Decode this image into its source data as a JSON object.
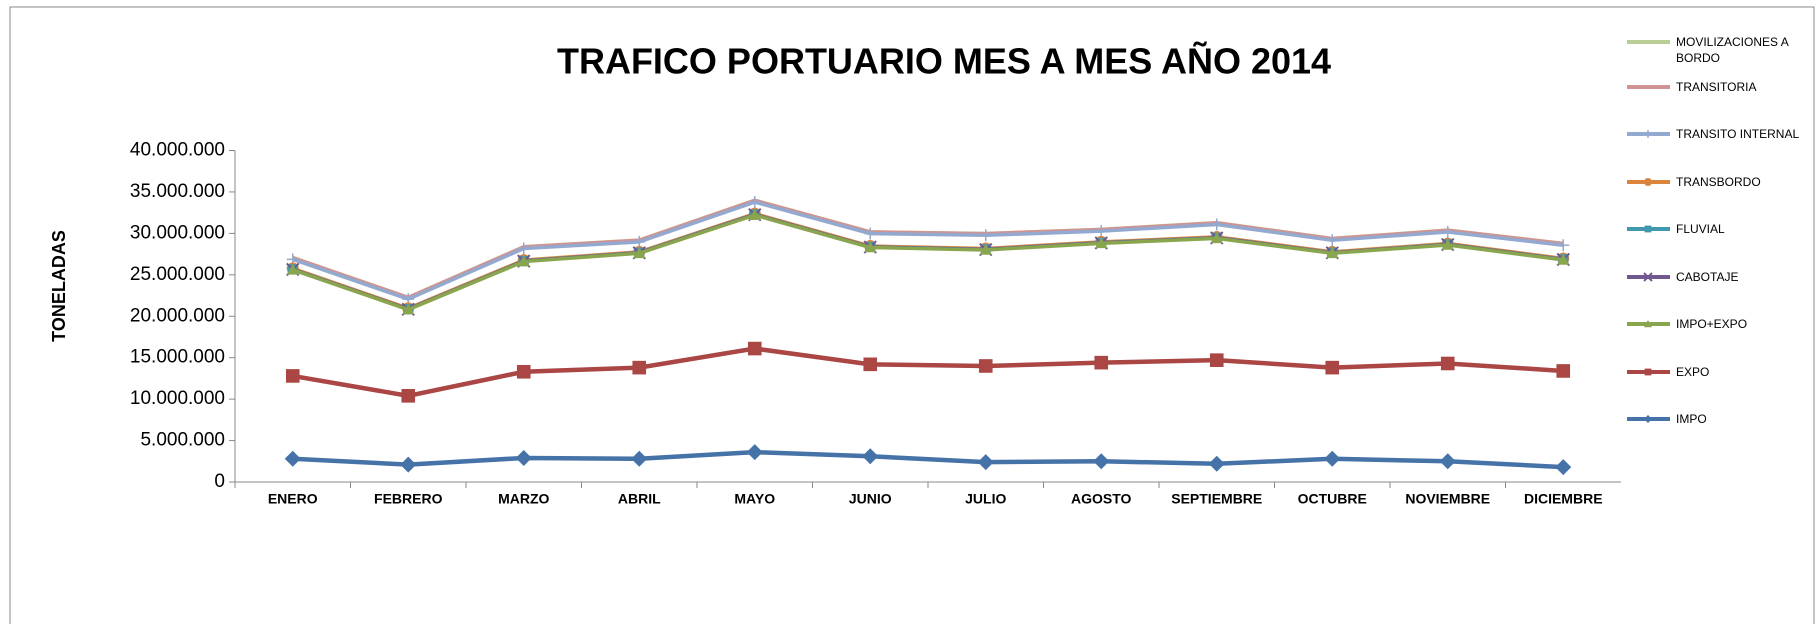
{
  "chart_data": {
    "type": "line",
    "stacked": true,
    "title": "TRAFICO PORTUARIO MES A MES AÑO 2014",
    "y_label": "TONELADAS",
    "grid": false,
    "legend": "right",
    "categories": [
      "ENERO",
      "FEBRERO",
      "MARZO",
      "ABRIL",
      "MAYO",
      "JUNIO",
      "JULIO",
      "AGOSTO",
      "SEPTIEMBRE",
      "OCTUBRE",
      "NOVIEMBRE",
      "DICIEMBRE"
    ],
    "ylim": [
      0,
      40000000
    ],
    "yticks": [
      0,
      {
        "value": 5000000,
        "label": "5.000.000"
      },
      {
        "value": 10000000,
        "label": "10.000.000"
      },
      {
        "value": 15000000,
        "label": "15.000.000"
      },
      {
        "value": 20000000,
        "label": "20.000.000"
      },
      {
        "value": 25000000,
        "label": "25.000.000"
      },
      {
        "value": 30000000,
        "label": "30.000.000"
      },
      {
        "value": 35000000,
        "label": "35.000.000"
      },
      {
        "value": 40000000,
        "label": "40.000.000"
      }
    ],
    "series": [
      {
        "name": "IMPO",
        "color": "#4572a7",
        "marker": "diamond",
        "values": [
          2800000,
          2100000,
          2900000,
          2800000,
          3600000,
          3100000,
          2400000,
          2500000,
          2200000,
          2800000,
          2500000,
          1800000
        ]
      },
      {
        "name": "EXPO",
        "color": "#aa4643",
        "marker": "square",
        "values": [
          10000000,
          8300000,
          10400000,
          11000000,
          12500000,
          11100000,
          11600000,
          11900000,
          12500000,
          11000000,
          11800000,
          11600000
        ]
      },
      {
        "name": "IMPO+EXPO",
        "color": "#89a54e",
        "marker": "triangle",
        "values": [
          12800000,
          10400000,
          13300000,
          13800000,
          16100000,
          14100000,
          14000000,
          14400000,
          14700000,
          13800000,
          14300000,
          13400000
        ]
      },
      {
        "name": "CABOTAJE",
        "color": "#71588f",
        "marker": "x",
        "values": [
          50000,
          40000,
          50000,
          50000,
          60000,
          50000,
          50000,
          50000,
          50000,
          50000,
          50000,
          50000
        ]
      },
      {
        "name": "FLUVIAL",
        "color": "#4198af",
        "marker": "square",
        "values": [
          20000,
          20000,
          20000,
          20000,
          20000,
          20000,
          20000,
          20000,
          20000,
          20000,
          20000,
          20000
        ]
      },
      {
        "name": "TRANSBORDO",
        "color": "#db843d",
        "marker": "circle",
        "values": [
          100000,
          100000,
          100000,
          100000,
          100000,
          100000,
          100000,
          100000,
          100000,
          100000,
          100000,
          100000
        ]
      },
      {
        "name": "TRANSITO INTERNAL",
        "color": "#93a9cf",
        "marker": "plus",
        "values": [
          1100000,
          1100000,
          1400000,
          1200000,
          1400000,
          1500000,
          1600000,
          1300000,
          1500000,
          1400000,
          1400000,
          1600000
        ]
      },
      {
        "name": "TRANSITORIA",
        "color": "#d19392",
        "marker": "none",
        "values": [
          200000,
          200000,
          200000,
          200000,
          200000,
          200000,
          200000,
          200000,
          200000,
          200000,
          200000,
          200000
        ]
      },
      {
        "name": "MOVILIZACIONES A BORDO",
        "color": "#b9cd96",
        "marker": "none",
        "values": [
          20000,
          20000,
          20000,
          20000,
          20000,
          20000,
          20000,
          20000,
          20000,
          20000,
          20000,
          20000
        ]
      }
    ]
  }
}
